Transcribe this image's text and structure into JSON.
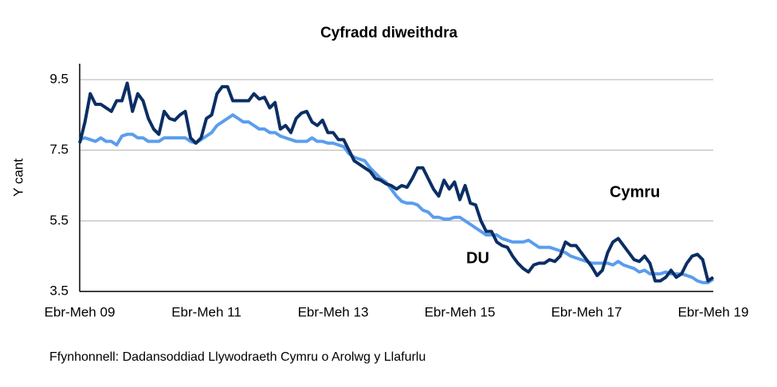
{
  "chart_data": {
    "type": "line",
    "title": "Cyfradd diweithdra",
    "y_label": "Y cant",
    "source": "Ffynhonnell: Dadansoddiad Llywodraeth Cymru o Arolwg y Llafurlu",
    "categories": [
      "Ebr-Meh 09",
      null,
      null,
      null,
      null,
      null,
      null,
      null,
      null,
      null,
      null,
      null,
      null,
      null,
      null,
      null,
      null,
      null,
      null,
      null,
      null,
      null,
      null,
      null,
      "Ebr-Meh 11",
      null,
      null,
      null,
      null,
      null,
      null,
      null,
      null,
      null,
      null,
      null,
      null,
      null,
      null,
      null,
      null,
      null,
      null,
      null,
      null,
      null,
      null,
      null,
      "Ebr-Meh 13",
      null,
      null,
      null,
      null,
      null,
      null,
      null,
      null,
      null,
      null,
      null,
      null,
      null,
      null,
      null,
      null,
      null,
      null,
      null,
      null,
      null,
      null,
      null,
      "Ebr-Meh 15",
      null,
      null,
      null,
      null,
      null,
      null,
      null,
      null,
      null,
      null,
      null,
      null,
      null,
      null,
      null,
      null,
      null,
      null,
      null,
      null,
      null,
      null,
      null,
      "Ebr-Meh 17",
      null,
      null,
      null,
      null,
      null,
      null,
      null,
      null,
      null,
      null,
      null,
      null,
      null,
      null,
      null,
      null,
      null,
      null,
      null,
      null,
      null,
      null,
      null,
      "Ebr-Meh 19"
    ],
    "series": [
      {
        "name": "DU",
        "color": "#5b9ded",
        "values": [
          7.8,
          7.85,
          7.8,
          7.75,
          7.85,
          7.75,
          7.75,
          7.65,
          7.9,
          7.95,
          7.95,
          7.85,
          7.85,
          7.75,
          7.75,
          7.75,
          7.85,
          7.85,
          7.85,
          7.85,
          7.85,
          7.75,
          7.7,
          7.8,
          7.9,
          8.0,
          8.2,
          8.3,
          8.4,
          8.5,
          8.4,
          8.3,
          8.3,
          8.2,
          8.1,
          8.1,
          8.0,
          8.0,
          7.9,
          7.85,
          7.8,
          7.75,
          7.75,
          7.75,
          7.85,
          7.75,
          7.75,
          7.7,
          7.7,
          7.65,
          7.6,
          7.4,
          7.3,
          7.25,
          7.2,
          7.0,
          6.85,
          6.7,
          6.6,
          6.4,
          6.2,
          6.05,
          6.0,
          6.0,
          5.95,
          5.8,
          5.75,
          5.6,
          5.6,
          5.55,
          5.55,
          5.6,
          5.6,
          5.5,
          5.4,
          5.3,
          5.2,
          5.1,
          5.1,
          5.1,
          5.0,
          4.95,
          4.9,
          4.9,
          4.9,
          4.95,
          4.85,
          4.75,
          4.75,
          4.75,
          4.7,
          4.65,
          4.6,
          4.5,
          4.45,
          4.4,
          4.35,
          4.3,
          4.3,
          4.3,
          4.3,
          4.25,
          4.35,
          4.25,
          4.2,
          4.15,
          4.05,
          4.1,
          4.0,
          4.0,
          4.0,
          4.05,
          4.0,
          4.0,
          4.0,
          3.95,
          3.9,
          3.8,
          3.75,
          3.75,
          3.85
        ]
      },
      {
        "name": "Cymru",
        "color": "#0b2e63",
        "values": [
          7.7,
          8.3,
          9.1,
          8.8,
          8.8,
          8.7,
          8.6,
          8.9,
          8.9,
          9.4,
          8.6,
          9.1,
          8.9,
          8.4,
          8.1,
          7.95,
          8.6,
          8.4,
          8.35,
          8.5,
          8.6,
          7.85,
          7.7,
          7.85,
          8.4,
          8.5,
          9.1,
          9.3,
          9.3,
          8.9,
          8.9,
          8.9,
          8.9,
          9.1,
          8.95,
          9.0,
          8.7,
          8.85,
          8.1,
          8.2,
          8.0,
          8.4,
          8.55,
          8.6,
          8.3,
          8.2,
          8.35,
          8.0,
          8.0,
          7.8,
          7.8,
          7.5,
          7.2,
          7.1,
          7.0,
          6.9,
          6.7,
          6.65,
          6.55,
          6.5,
          6.4,
          6.5,
          6.45,
          6.7,
          7.0,
          7.0,
          6.7,
          6.4,
          6.2,
          6.65,
          6.4,
          6.6,
          6.1,
          6.5,
          6.0,
          5.95,
          5.5,
          5.2,
          5.2,
          4.9,
          4.8,
          4.75,
          4.5,
          4.3,
          4.15,
          4.05,
          4.25,
          4.3,
          4.3,
          4.4,
          4.35,
          4.5,
          4.9,
          4.8,
          4.8,
          4.6,
          4.4,
          4.2,
          3.95,
          4.1,
          4.6,
          4.9,
          5.0,
          4.8,
          4.6,
          4.4,
          4.35,
          4.5,
          4.3,
          3.8,
          3.8,
          3.9,
          4.1,
          3.9,
          4.0,
          4.3,
          4.5,
          4.55,
          4.4,
          3.8,
          3.9
        ]
      }
    ],
    "ylim": [
      3.5,
      9.95
    ],
    "yticks": [
      3.5,
      5.5,
      7.5,
      9.5
    ],
    "grid": true
  }
}
